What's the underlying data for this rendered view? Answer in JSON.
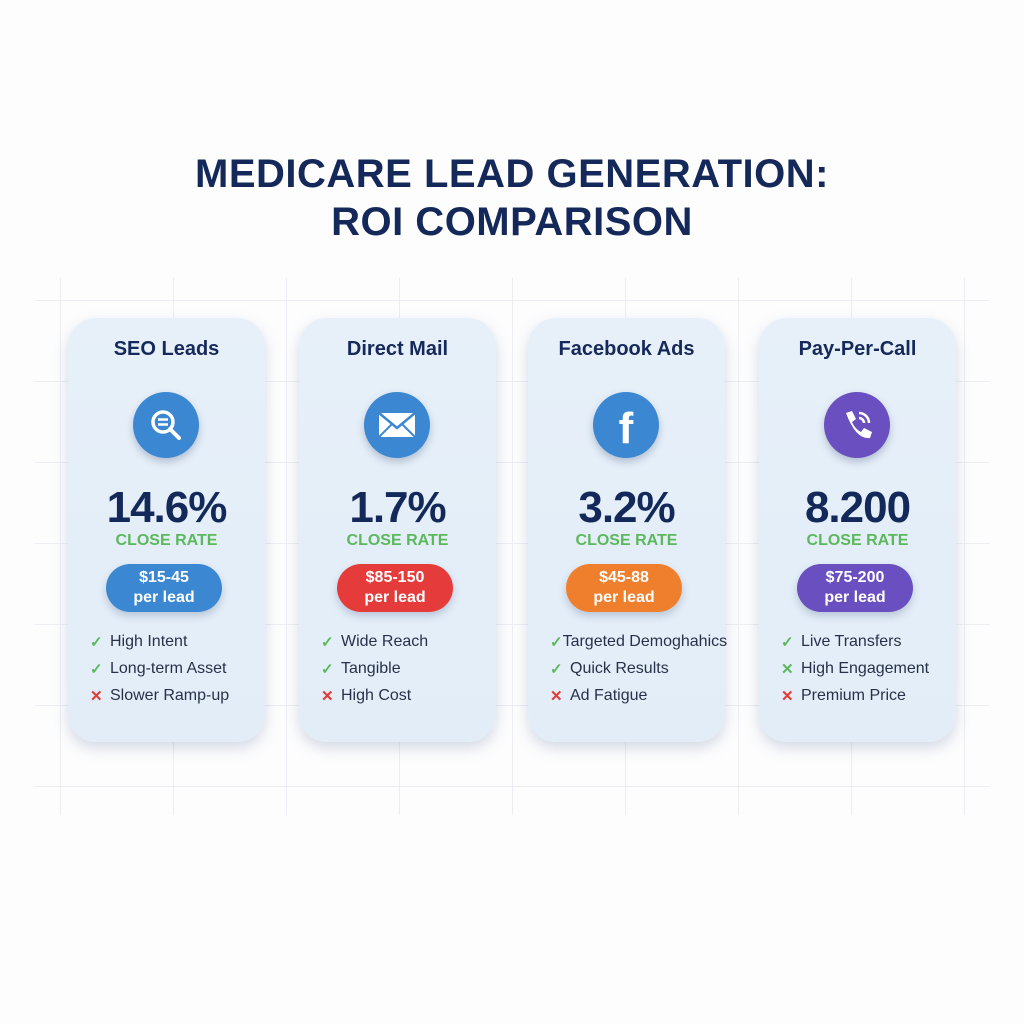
{
  "title": {
    "line1": "MEDICARE LEAD GENERATION:",
    "line2": "ROI COMPARISON"
  },
  "cards": [
    {
      "name": "SEO Leads",
      "icon": "search-icon",
      "color": "#3b87d2",
      "value": "14.6%",
      "label": "CLOSE RATE",
      "price": "$15-45",
      "unit": "per lead",
      "features": [
        {
          "text": "High Intent",
          "mark": "check",
          "color": "#5cb85c"
        },
        {
          "text": "Long-term Asset",
          "mark": "check",
          "color": "#5cb85c"
        },
        {
          "text": "Slower Ramp-up",
          "mark": "cross",
          "color": "#e53935"
        }
      ]
    },
    {
      "name": "Direct Mail",
      "icon": "envelope-icon",
      "color": "#e53b3b",
      "iconColor": "#3b87d2",
      "value": "1.7%",
      "label": "CLOSE RATE",
      "price": "$85-150",
      "unit": "per lead",
      "features": [
        {
          "text": "Wide Reach",
          "mark": "check",
          "color": "#5cb85c"
        },
        {
          "text": "Tangible",
          "mark": "check",
          "color": "#5cb85c"
        },
        {
          "text": "High Cost",
          "mark": "cross",
          "color": "#e53935"
        }
      ]
    },
    {
      "name": "Facebook Ads",
      "icon": "facebook-icon",
      "color": "#f07f2d",
      "iconColor": "#3b87d2",
      "value": "3.2%",
      "label": "CLOSE RATE",
      "price": "$45-88",
      "unit": "per lead",
      "features": [
        {
          "text": "Targeted Demoghahics",
          "mark": "check",
          "color": "#5cb85c"
        },
        {
          "text": "Quick Results",
          "mark": "check",
          "color": "#5cb85c"
        },
        {
          "text": "Ad Fatigue",
          "mark": "cross",
          "color": "#e53935"
        }
      ]
    },
    {
      "name": "Pay-Per-Call",
      "icon": "phone-icon",
      "color": "#6a4fc0",
      "iconColor": "#6a4fc0",
      "value": "8.200",
      "label": "CLOSE RATE",
      "price": "$75-200",
      "unit": "per lead",
      "features": [
        {
          "text": "Live Transfers",
          "mark": "check",
          "color": "#5cb85c"
        },
        {
          "text": "High Engagement",
          "mark": "cross",
          "color": "#5cb85c"
        },
        {
          "text": "Premium Price",
          "mark": "cross",
          "color": "#e53935"
        }
      ]
    }
  ]
}
